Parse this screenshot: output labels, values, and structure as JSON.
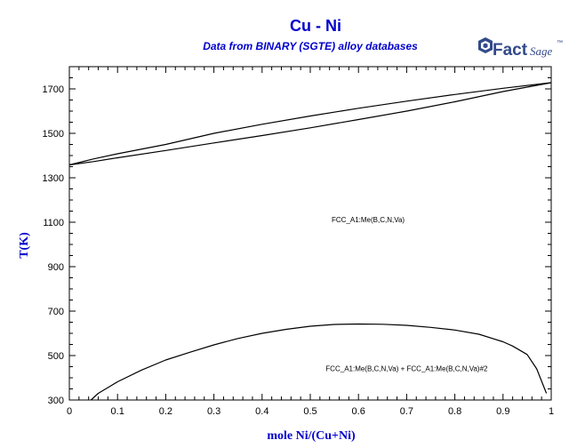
{
  "logo": {
    "icon": "factsage-logo",
    "text_main": "Fact",
    "text_sage": "Sage",
    "mark": "™"
  },
  "chart_data": {
    "type": "line",
    "title": "Cu - Ni",
    "subtitle": "Data from BINARY (SGTE) alloy databases",
    "xlabel": "mole Ni/(Cu+Ni)",
    "ylabel": "T(K)",
    "xlim": [
      0,
      1
    ],
    "ylim": [
      300,
      1800
    ],
    "xticks": [
      0,
      0.1,
      0.2,
      0.3,
      0.4,
      0.5,
      0.6,
      0.7,
      0.8,
      0.9,
      1
    ],
    "xtick_labels": [
      "0",
      "0.1",
      "0.2",
      "0.3",
      "0.4",
      "0.5",
      "0.6",
      "0.7",
      "0.8",
      "0.9",
      "1"
    ],
    "yticks": [
      300,
      500,
      700,
      900,
      1100,
      1300,
      1500,
      1700
    ],
    "ytick_labels": [
      "300",
      "500",
      "700",
      "900",
      "1100",
      "1300",
      "1500",
      "1700"
    ],
    "grid": false,
    "series": [
      {
        "x": [
          0,
          0.05,
          0.1,
          0.2,
          0.3,
          0.4,
          0.5,
          0.6,
          0.7,
          0.8,
          0.9,
          1.0
        ],
        "y": [
          1358,
          1385,
          1408,
          1450,
          1500,
          1541,
          1578,
          1613,
          1645,
          1675,
          1703,
          1728
        ]
      },
      {
        "x": [
          0,
          0.05,
          0.1,
          0.2,
          0.3,
          0.4,
          0.5,
          0.6,
          0.7,
          0.8,
          0.9,
          1.0
        ],
        "y": [
          1358,
          1373,
          1390,
          1423,
          1457,
          1490,
          1525,
          1562,
          1600,
          1642,
          1688,
          1728
        ]
      },
      {
        "x": [
          0.045,
          0.06,
          0.1,
          0.15,
          0.2,
          0.25,
          0.3,
          0.35,
          0.4,
          0.45,
          0.5,
          0.55,
          0.6,
          0.65,
          0.7,
          0.75,
          0.8,
          0.85,
          0.9,
          0.92,
          0.95,
          0.97,
          0.99
        ],
        "y": [
          300,
          330,
          382,
          435,
          480,
          515,
          548,
          577,
          600,
          618,
          632,
          640,
          642,
          641,
          636,
          627,
          615,
          596,
          562,
          543,
          505,
          440,
          330
        ]
      }
    ],
    "annotations": [
      {
        "text": "FCC_A1:Me(B,C,N,Va)",
        "x": 0.62,
        "y": 1100
      },
      {
        "text": "FCC_A1:Me(B,C,N,Va) + FCC_A1:Me(B,C,N,Va)#2",
        "x": 0.7,
        "y": 430
      }
    ]
  }
}
